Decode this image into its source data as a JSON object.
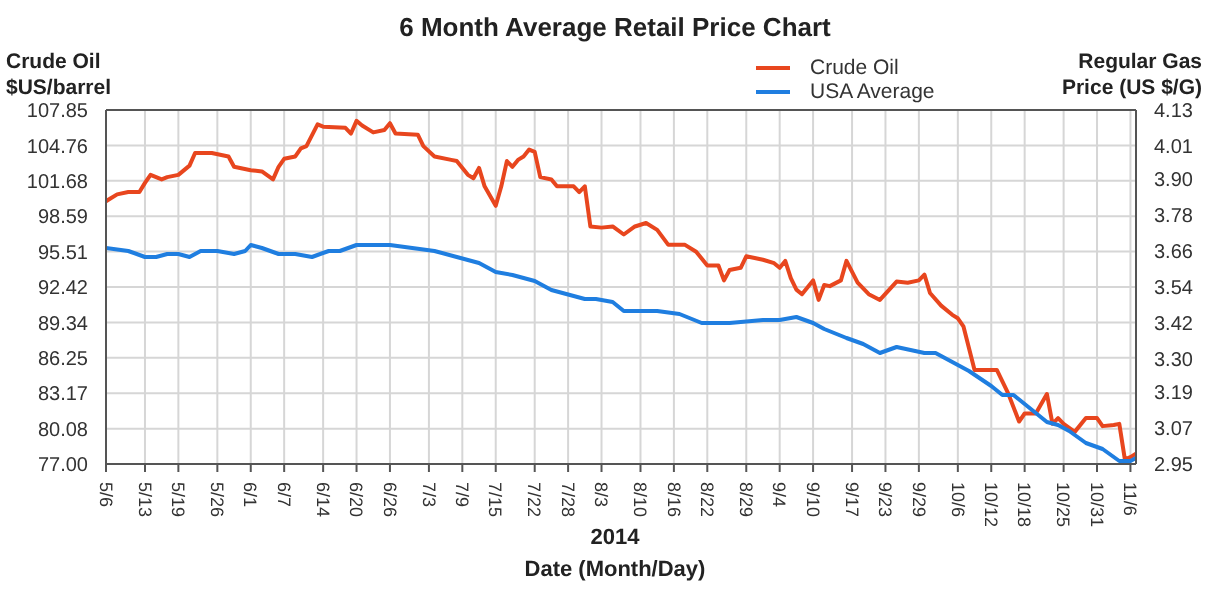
{
  "chart_data": {
    "type": "line",
    "title": "6 Month Average Retail Price Chart",
    "ylabel": "Crude Oil\n$US/barrel",
    "y2label": "Regular Gas\nPrice (US $/G)",
    "xlabel": "Date (Month/Day)",
    "annotations": [
      "2014"
    ],
    "xlim": [
      "--05-06",
      "--11-07"
    ],
    "xticks": [
      {
        "value": "--05-06",
        "label": "5/6"
      },
      {
        "value": "--05-13",
        "label": "5/13"
      },
      {
        "value": "--05-19",
        "label": "5/19"
      },
      {
        "value": "--05-26",
        "label": "5/26"
      },
      {
        "value": "--06-01",
        "label": "6/1"
      },
      {
        "value": "--06-07",
        "label": "6/7"
      },
      {
        "value": "--06-14",
        "label": "6/14"
      },
      {
        "value": "--06-20",
        "label": "6/20"
      },
      {
        "value": "--06-26",
        "label": "6/26"
      },
      {
        "value": "--07-03",
        "label": "7/3"
      },
      {
        "value": "--07-09",
        "label": "7/9"
      },
      {
        "value": "--07-15",
        "label": "7/15"
      },
      {
        "value": "--07-22",
        "label": "7/22"
      },
      {
        "value": "--07-28",
        "label": "7/28"
      },
      {
        "value": "--08-03",
        "label": "8/3"
      },
      {
        "value": "--08-10",
        "label": "8/10"
      },
      {
        "value": "--08-16",
        "label": "8/16"
      },
      {
        "value": "--08-22",
        "label": "8/22"
      },
      {
        "value": "--08-29",
        "label": "8/29"
      },
      {
        "value": "--09-04",
        "label": "9/4"
      },
      {
        "value": "--09-10",
        "label": "9/10"
      },
      {
        "value": "--09-17",
        "label": "9/17"
      },
      {
        "value": "--09-23",
        "label": "9/23"
      },
      {
        "value": "--09-29",
        "label": "9/29"
      },
      {
        "value": "--10-06",
        "label": "10/6"
      },
      {
        "value": "--10-12",
        "label": "10/12"
      },
      {
        "value": "--10-18",
        "label": "10/18"
      },
      {
        "value": "--10-25",
        "label": "10/25"
      },
      {
        "value": "--10-31",
        "label": "10/31"
      },
      {
        "value": "--11-06",
        "label": "11/6"
      }
    ],
    "ylim": [
      77,
      107.85
    ],
    "yticks": [
      {
        "value": 77,
        "label": "77.00"
      },
      80.08,
      83.17,
      86.25,
      89.34,
      92.42,
      95.51,
      98.59,
      101.68,
      104.76,
      107.85
    ],
    "y2lim": [
      2.95,
      4.13
    ],
    "y2ticks": [
      2.95,
      3.07,
      3.19,
      {
        "value": 3.3,
        "label": "3.30"
      },
      3.42,
      3.54,
      3.66,
      3.78,
      {
        "value": 3.9,
        "label": "3.90"
      },
      4.01,
      4.13
    ],
    "grid": true,
    "legend": "top right",
    "marker": "none",
    "line_style": "solid",
    "series": [
      {
        "name": "Crude Oil",
        "color": "#e8461e",
        "x": [
          "--05-06",
          "--05-08",
          "--05-10",
          "--05-12",
          "--05-13",
          "--05-14",
          "--05-16",
          "--05-17",
          "--05-19",
          "--05-21",
          "--05-22",
          "--05-25",
          "--05-28",
          "--05-29",
          "--06-01",
          "--06-03",
          "--06-05",
          "--06-06",
          "--06-07",
          "--06-09",
          "--06-10",
          "--06-11",
          "--06-13",
          "--06-14",
          "--06-18",
          "--06-19",
          "--06-20",
          "--06-21",
          "--06-23",
          "--06-25",
          "--06-26",
          "--06-27",
          "--07-01",
          "--07-02",
          "--07-04",
          "--07-07",
          "--07-08",
          "--07-10",
          "--07-11",
          "--07-12",
          "--07-13",
          "--07-15",
          "--07-16",
          "--07-17",
          "--07-18",
          "--07-19",
          "--07-20",
          "--07-21",
          "--07-22",
          "--07-23",
          "--07-25",
          "--07-26",
          "--07-29",
          "--07-30",
          "--07-31",
          "--08-01",
          "--08-03",
          "--08-05",
          "--08-07",
          "--08-09",
          "--08-11",
          "--08-13",
          "--08-15",
          "--08-18",
          "--08-20",
          "--08-22",
          "--08-24",
          "--08-25",
          "--08-26",
          "--08-28",
          "--08-29",
          "--09-01",
          "--09-03",
          "--09-04",
          "--09-05",
          "--09-06",
          "--09-07",
          "--09-08",
          "--09-10",
          "--09-11",
          "--09-12",
          "--09-13",
          "--09-15",
          "--09-16",
          "--09-18",
          "--09-20",
          "--09-22",
          "--09-25",
          "--09-27",
          "--09-29",
          "--09-30",
          "--10-01",
          "--10-03",
          "--10-05",
          "--10-06",
          "--10-07",
          "--10-09",
          "--10-11",
          "--10-13",
          "--10-15",
          "--10-17",
          "--10-18",
          "--10-20",
          "--10-22",
          "--10-23",
          "--10-24",
          "--10-25",
          "--10-27",
          "--10-29",
          "--10-31",
          "--11-01",
          "--11-03",
          "--11-04",
          "--11-05",
          "--11-06",
          "--11-07"
        ],
        "values": [
          99.9,
          100.5,
          100.7,
          100.7,
          101.5,
          102.2,
          101.8,
          102.0,
          102.2,
          103.0,
          104.1,
          104.1,
          103.8,
          102.9,
          102.6,
          102.5,
          101.8,
          102.9,
          103.6,
          103.8,
          104.5,
          104.7,
          106.6,
          106.4,
          106.3,
          105.8,
          106.9,
          106.5,
          105.9,
          106.1,
          106.7,
          105.8,
          105.7,
          104.7,
          103.8,
          103.5,
          103.4,
          102.2,
          101.9,
          102.8,
          101.2,
          99.5,
          101.2,
          103.4,
          102.9,
          103.5,
          103.8,
          104.4,
          104.2,
          102.0,
          101.8,
          101.2,
          101.2,
          100.7,
          101.2,
          97.7,
          97.6,
          97.7,
          97.0,
          97.7,
          98.0,
          97.4,
          96.1,
          96.1,
          95.5,
          94.3,
          94.3,
          93.0,
          93.9,
          94.1,
          95.1,
          94.8,
          94.5,
          94.1,
          94.7,
          93.2,
          92.2,
          91.8,
          93.0,
          91.3,
          92.6,
          92.5,
          93.0,
          94.7,
          92.8,
          91.8,
          91.3,
          92.9,
          92.8,
          93.0,
          93.5,
          91.9,
          90.8,
          90.0,
          89.7,
          89.0,
          85.2,
          85.2,
          85.2,
          83.2,
          80.7,
          81.4,
          81.4,
          83.1,
          80.5,
          81.0,
          80.5,
          79.8,
          81.0,
          81.0,
          80.3,
          80.4,
          80.5,
          77.4,
          77.6,
          77.9
        ]
      },
      {
        "name": "USA Average",
        "color": "#1f7ee0",
        "axis": "y2",
        "x": [
          "--05-06",
          "--05-10",
          "--05-13",
          "--05-15",
          "--05-17",
          "--05-19",
          "--05-21",
          "--05-23",
          "--05-26",
          "--05-29",
          "--05-31",
          "--06-01",
          "--06-03",
          "--06-06",
          "--06-09",
          "--06-12",
          "--06-15",
          "--06-17",
          "--06-20",
          "--06-23",
          "--06-26",
          "--06-30",
          "--07-04",
          "--07-08",
          "--07-12",
          "--07-15",
          "--07-18",
          "--07-22",
          "--07-25",
          "--07-29",
          "--07-31",
          "--08-02",
          "--08-05",
          "--08-07",
          "--08-10",
          "--08-13",
          "--08-17",
          "--08-21",
          "--08-26",
          "--09-01",
          "--09-04",
          "--09-07",
          "--09-10",
          "--09-12",
          "--09-16",
          "--09-19",
          "--09-22",
          "--09-25",
          "--09-30",
          "--10-02",
          "--10-05",
          "--10-08",
          "--10-12",
          "--10-14",
          "--10-16",
          "--10-20",
          "--10-22",
          "--10-24",
          "--10-26",
          "--10-29",
          "--11-01",
          "--11-04",
          "--11-06",
          "--11-07"
        ],
        "values": [
          3.67,
          3.66,
          3.64,
          3.64,
          3.65,
          3.65,
          3.64,
          3.66,
          3.66,
          3.65,
          3.66,
          3.68,
          3.67,
          3.65,
          3.65,
          3.64,
          3.66,
          3.66,
          3.68,
          3.68,
          3.68,
          3.67,
          3.66,
          3.64,
          3.62,
          3.59,
          3.58,
          3.56,
          3.53,
          3.51,
          3.5,
          3.5,
          3.49,
          3.46,
          3.46,
          3.46,
          3.45,
          3.42,
          3.42,
          3.43,
          3.43,
          3.44,
          3.42,
          3.4,
          3.37,
          3.35,
          3.32,
          3.34,
          3.32,
          3.32,
          3.29,
          3.26,
          3.21,
          3.18,
          3.18,
          3.12,
          3.09,
          3.08,
          3.06,
          3.02,
          3.0,
          2.96,
          2.96,
          2.97
        ]
      }
    ]
  }
}
